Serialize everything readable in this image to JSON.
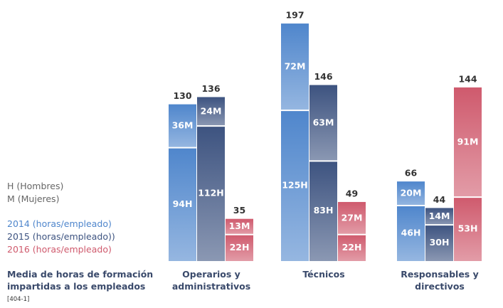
{
  "chart_data": {
    "type": "stacked-bar",
    "title": "Media de horas de formación impartidas a los empleados",
    "subtitle": "[404-1]",
    "legend_notes": [
      "H (Hombres)",
      "M (Mujeres)"
    ],
    "categories": [
      "Operarios y administrativos",
      "Técnicos",
      "Responsables y directivos"
    ],
    "ylim": [
      0,
      200
    ],
    "series": [
      {
        "name": "2014 (horas/empleado)",
        "color": "#4f86cc",
        "h_values": [
          94,
          125,
          46
        ],
        "h_labels": [
          "94H",
          "125H",
          "46H"
        ],
        "m_values": [
          36,
          72,
          20
        ],
        "m_labels": [
          "36M",
          "72M",
          "20M"
        ],
        "totals": [
          130,
          197,
          66
        ]
      },
      {
        "name": "2015 (horas/empleado))",
        "color": "#3d5380",
        "h_values": [
          112,
          83,
          30
        ],
        "h_labels": [
          "112H",
          "83H",
          "30H"
        ],
        "m_values": [
          24,
          63,
          14
        ],
        "m_labels": [
          "24M",
          "63M",
          "14M"
        ],
        "totals": [
          136,
          146,
          44
        ]
      },
      {
        "name": "2016 (horas/empleado)",
        "color": "#cf5a6d",
        "h_values": [
          22,
          22,
          53
        ],
        "h_labels": [
          "22H",
          "22H",
          "53H"
        ],
        "m_values": [
          13,
          27,
          91
        ],
        "m_labels": [
          "13M",
          "27M",
          "91M"
        ],
        "totals": [
          35,
          49,
          144
        ]
      }
    ]
  }
}
